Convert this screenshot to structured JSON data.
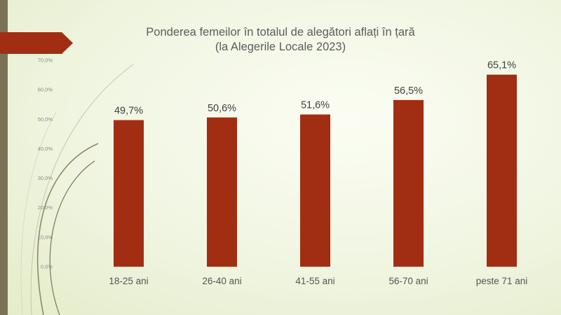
{
  "colors": {
    "bar": "#a12e12",
    "accent_tab": "#a12e12",
    "left_bar": "#7a7257"
  },
  "chart_data": {
    "type": "bar",
    "title": "Ponderea femeilor în totalul de alegători aflați în țară",
    "subtitle": "(la Alegerile Locale 2023)",
    "categories": [
      "18-25 ani",
      "26-40 ani",
      "41-55 ani",
      "56-70 ani",
      "peste 71 ani"
    ],
    "values": [
      49.7,
      50.6,
      51.6,
      56.5,
      65.1
    ],
    "data_labels": [
      "49,7%",
      "50,6%",
      "51,6%",
      "56,5%",
      "65,1%"
    ],
    "y_ticks": [
      "0,0%",
      "10,0%",
      "20,0%",
      "30,0%",
      "40,0%",
      "50,0%",
      "60,0%",
      "70,0%"
    ],
    "ylim": [
      0,
      70
    ],
    "grid": false,
    "legend": "none"
  }
}
